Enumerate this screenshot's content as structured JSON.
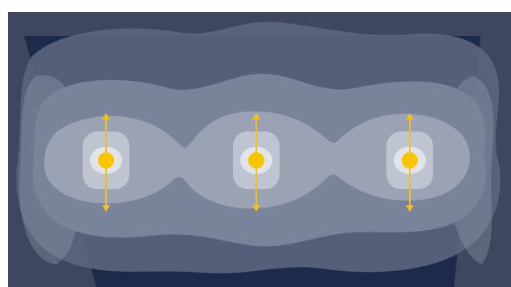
{
  "colors": {
    "background_white": "#ffffff",
    "outer_field": "#3e4660",
    "trapezoid": "#1d2a4a",
    "layer_1": "#5c6580",
    "layer_2": "#79849a",
    "layer_3": "#9aa2b4",
    "cell_glow": "#c6cad6",
    "inner_halo": "#e2e4ea",
    "particle": "#f7c600",
    "arrow": "#f3c018"
  },
  "diagram": {
    "particle_count": 3,
    "particles": [
      {
        "id": "left",
        "arrows": [
          "up",
          "down"
        ]
      },
      {
        "id": "center",
        "arrows": [
          "up",
          "down"
        ]
      },
      {
        "id": "right",
        "arrows": [
          "up",
          "down"
        ]
      }
    ]
  }
}
